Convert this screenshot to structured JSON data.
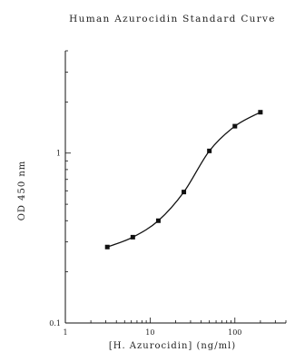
{
  "chart_data": {
    "type": "line",
    "title": "Human Azurocidin Standard Curve",
    "xlabel": "[H. Azurocidin] (ng/ml)",
    "ylabel": "OD 450 nm",
    "x_scale": "log",
    "y_scale": "log",
    "xlim": [
      1,
      400
    ],
    "ylim": [
      0.1,
      4
    ],
    "x_ticks": [
      {
        "value": 1,
        "label": "1"
      },
      {
        "value": 10,
        "label": "10"
      },
      {
        "value": 100,
        "label": "100"
      }
    ],
    "y_ticks": [
      {
        "value": 0.1,
        "label": "0.1"
      },
      {
        "value": 1,
        "label": "1"
      }
    ],
    "grid": false,
    "series": [
      {
        "marker": "square",
        "color": "#111111",
        "x": [
          3.125,
          6.25,
          12.5,
          25,
          50,
          100,
          200
        ],
        "y": [
          0.28,
          0.32,
          0.4,
          0.59,
          1.03,
          1.44,
          1.74
        ]
      }
    ]
  }
}
